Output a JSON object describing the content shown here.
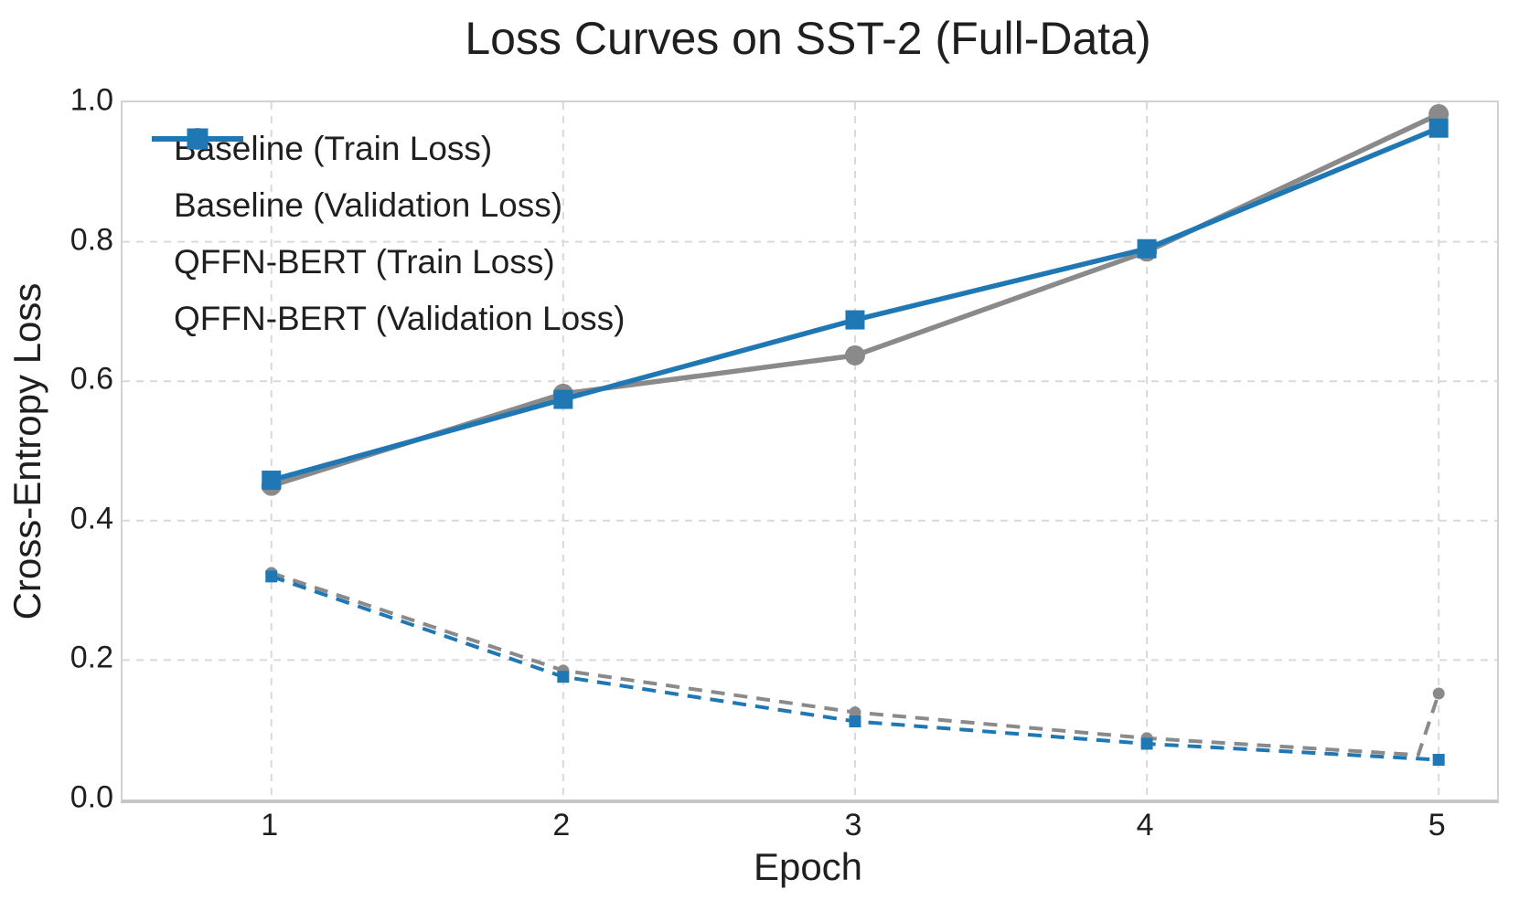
{
  "chart_data": {
    "type": "line",
    "title": "Loss Curves on SST-2 (Full-Data)",
    "xlabel": "Epoch",
    "ylabel": "Cross-Entropy Loss",
    "x": [
      1,
      2,
      3,
      4,
      5
    ],
    "xlim": [
      0.49,
      5.2
    ],
    "ylim": [
      0.0,
      1.0
    ],
    "xtick_labels": [
      "1",
      "2",
      "3",
      "4",
      "5"
    ],
    "ytick_labels": [
      "0.0",
      "0.2",
      "0.4",
      "0.6",
      "0.8",
      "1.0"
    ],
    "grid": true,
    "grid_style": "dashed",
    "legend_position": "upper-left",
    "colors": {
      "baseline": "#8a8a8a",
      "qffn": "#1f77b4",
      "gridline": "#d9d9d9",
      "text": "#1f1f1f"
    },
    "series": [
      {
        "id": "baseline-train",
        "name": "Baseline (Train Loss)",
        "color": "#8a8a8a",
        "line_style": "dashed",
        "marker": "circle",
        "marker_size": "small",
        "values": [
          0.325,
          0.185,
          0.125,
          0.088,
          0.152
        ],
        "line_path_x": [
          1,
          2,
          3,
          4,
          4.93,
          5
        ],
        "line_path_y": [
          0.325,
          0.185,
          0.125,
          0.088,
          0.064,
          0.152
        ]
      },
      {
        "id": "baseline-val",
        "name": "Baseline (Validation Loss)",
        "color": "#8a8a8a",
        "line_style": "solid",
        "marker": "circle",
        "marker_size": "large",
        "values": [
          0.45,
          0.582,
          0.637,
          0.786,
          0.983
        ]
      },
      {
        "id": "qffn-train",
        "name": "QFFN-BERT (Train Loss)",
        "color": "#1f77b4",
        "line_style": "dashed",
        "marker": "square",
        "marker_size": "small",
        "values": [
          0.32,
          0.176,
          0.112,
          0.08,
          0.057
        ]
      },
      {
        "id": "qffn-val",
        "name": "QFFN-BERT (Validation Loss)",
        "color": "#1f77b4",
        "line_style": "solid",
        "marker": "square",
        "marker_size": "large",
        "values": [
          0.458,
          0.574,
          0.688,
          0.79,
          0.963
        ]
      }
    ]
  }
}
